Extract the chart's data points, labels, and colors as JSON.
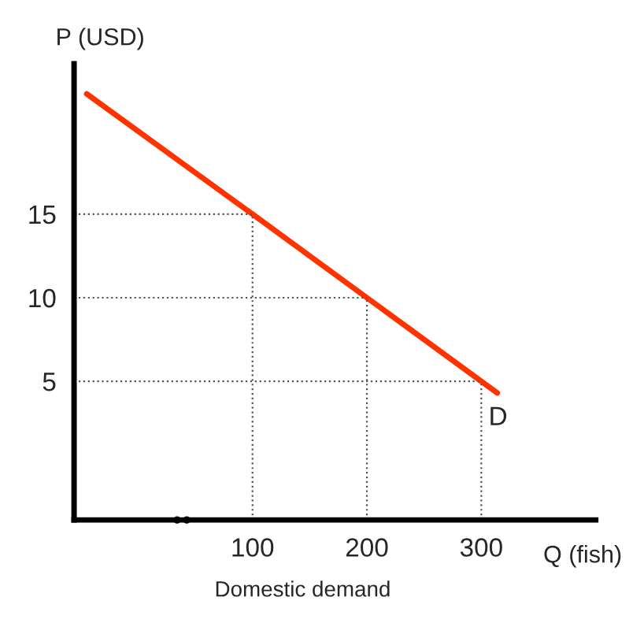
{
  "chart_data": {
    "type": "line",
    "xlabel": "Q (fish)",
    "ylabel": "P (USD)",
    "series": [
      {
        "color": "#ff3300",
        "x": [
          -45,
          100,
          200,
          300,
          314
        ],
        "values": [
          22.2,
          15,
          10,
          5,
          4.3
        ]
      },
      {
        "color": "#555555",
        "line_style": "dotted",
        "x": [
          100,
          100
        ],
        "values": [
          -3.3,
          15
        ]
      },
      {
        "color": "#555555",
        "line_style": "dotted",
        "x": [
          200,
          200
        ],
        "values": [
          -3.3,
          10
        ]
      },
      {
        "color": "#555555",
        "line_style": "dotted",
        "x": [
          300,
          300
        ],
        "values": [
          -3.3,
          5
        ]
      },
      {
        "color": "#555555",
        "line_style": "dotted",
        "x": [
          -56,
          100
        ],
        "values": [
          15,
          15
        ]
      },
      {
        "color": "#555555",
        "line_style": "dotted",
        "x": [
          -56,
          200
        ],
        "values": [
          10,
          10
        ]
      },
      {
        "color": "#555555",
        "line_style": "dotted",
        "x": [
          -56,
          300
        ],
        "values": [
          5,
          5
        ]
      }
    ],
    "xlim": [
      -56,
      400
    ],
    "ylim": [
      -3.3,
      24
    ],
    "xticks": [
      100,
      200,
      300
    ],
    "yticks": [
      5,
      10,
      15
    ],
    "marker": "none",
    "line_style": "solid",
    "annotations": [
      {
        "text": "D",
        "x": 314,
        "y": 4.3
      },
      "Domestic demand"
    ]
  }
}
